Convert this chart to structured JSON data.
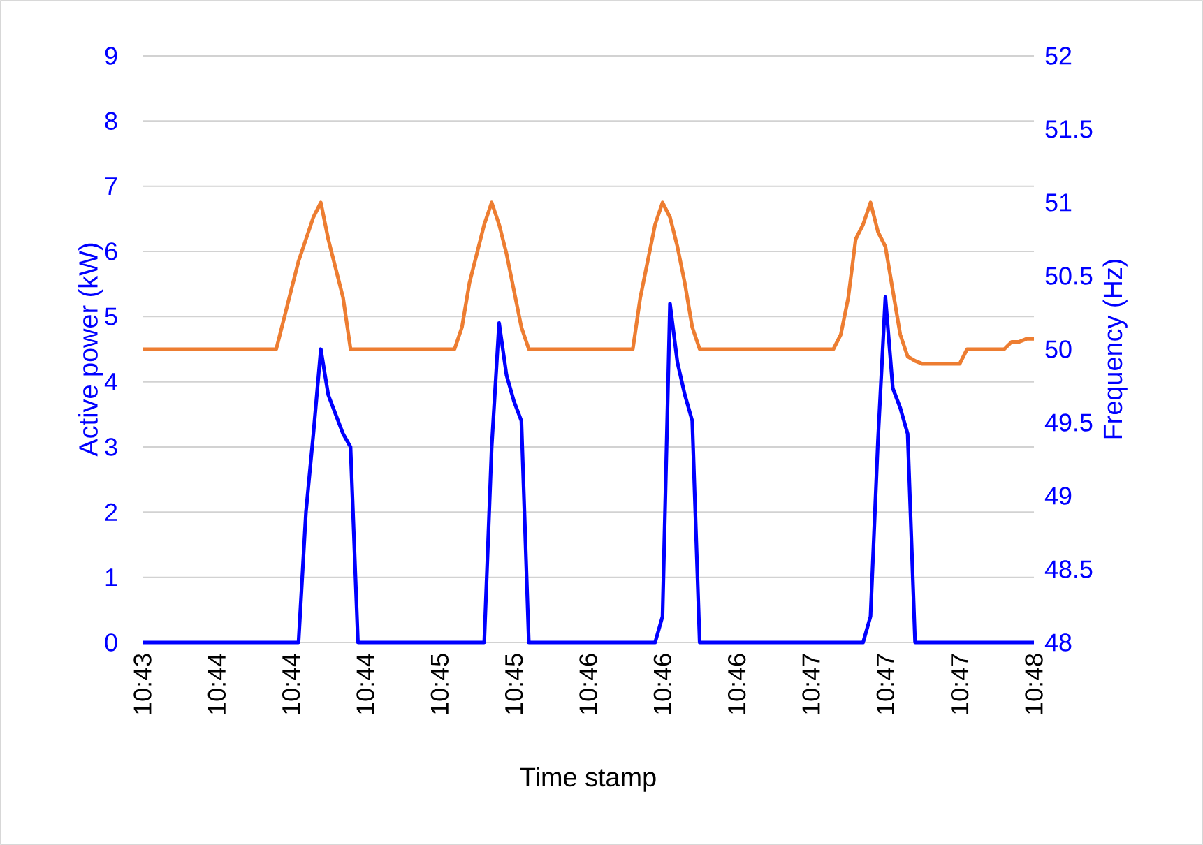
{
  "chart_data": {
    "type": "line",
    "xlabel": "Time stamp",
    "ylabel": "Active power (kW)",
    "y2label": "Frequency (Hz)",
    "categories": [
      "10:43",
      null,
      null,
      null,
      null,
      null,
      null,
      null,
      null,
      null,
      "10:44",
      null,
      null,
      null,
      null,
      null,
      null,
      null,
      null,
      null,
      "10:44",
      null,
      null,
      null,
      null,
      null,
      null,
      null,
      null,
      null,
      "10:44",
      null,
      null,
      null,
      null,
      null,
      null,
      null,
      null,
      null,
      "10:45",
      null,
      null,
      null,
      null,
      null,
      null,
      null,
      null,
      null,
      "10:45",
      null,
      null,
      null,
      null,
      null,
      null,
      null,
      null,
      null,
      "10:46",
      null,
      null,
      null,
      null,
      null,
      null,
      null,
      null,
      null,
      "10:46",
      null,
      null,
      null,
      null,
      null,
      null,
      null,
      null,
      null,
      "10:46",
      null,
      null,
      null,
      null,
      null,
      null,
      null,
      null,
      null,
      "10:47",
      null,
      null,
      null,
      null,
      null,
      null,
      null,
      null,
      null,
      "10:47",
      null,
      null,
      null,
      null,
      null,
      null,
      null,
      null,
      null,
      "10:47",
      null,
      null,
      null,
      null,
      null,
      null,
      null,
      null,
      null,
      "10:48"
    ],
    "ylim": [
      0,
      9
    ],
    "yticks": [
      0,
      1,
      2,
      3,
      4,
      5,
      6,
      7,
      8,
      9
    ],
    "y2lim": [
      48,
      52
    ],
    "y2ticks": [
      48,
      48.5,
      49,
      49.5,
      50,
      50.5,
      51,
      51.5,
      52
    ],
    "grid": "y",
    "series": [
      {
        "color": "#0000ff",
        "values": [
          0,
          0,
          0,
          0,
          0,
          0,
          0,
          0,
          0,
          0,
          0,
          0,
          0,
          0,
          0,
          0,
          0,
          0,
          0,
          0,
          0,
          0,
          2.0,
          3.2,
          4.5,
          3.8,
          3.5,
          3.2,
          3.0,
          0,
          0,
          0,
          0,
          0,
          0,
          0,
          0,
          0,
          0,
          0,
          0,
          0,
          0,
          0,
          0,
          0,
          0,
          3.0,
          4.9,
          4.1,
          3.7,
          3.4,
          0,
          0,
          0,
          0,
          0,
          0,
          0,
          0,
          0,
          0,
          0,
          0,
          0,
          0,
          0,
          0,
          0,
          0,
          0.4,
          5.2,
          4.3,
          3.8,
          3.4,
          0,
          0,
          0,
          0,
          0,
          0,
          0,
          0,
          0,
          0,
          0,
          0,
          0,
          0,
          0,
          0,
          0,
          0,
          0,
          0,
          0,
          0,
          0,
          0.4,
          3.1,
          5.3,
          3.9,
          3.6,
          3.2,
          0,
          0,
          0,
          0,
          0,
          0,
          0,
          0,
          0,
          0,
          0,
          0,
          0,
          0,
          0,
          0,
          0
        ]
      },
      {
        "color": "#ed7d31",
        "axis": "y2",
        "values": [
          50.0,
          50.0,
          50.0,
          50.0,
          50.0,
          50.0,
          50.0,
          50.0,
          50.0,
          50.0,
          50.0,
          50.0,
          50.0,
          50.0,
          50.0,
          50.0,
          50.0,
          50.0,
          50.0,
          50.2,
          50.4,
          50.6,
          50.75,
          50.9,
          51.0,
          50.75,
          50.55,
          50.35,
          50.0,
          50.0,
          50.0,
          50.0,
          50.0,
          50.0,
          50.0,
          50.0,
          50.0,
          50.0,
          50.0,
          50.0,
          50.0,
          50.0,
          50.0,
          50.15,
          50.45,
          50.65,
          50.85,
          51.0,
          50.85,
          50.65,
          50.4,
          50.15,
          50.0,
          50.0,
          50.0,
          50.0,
          50.0,
          50.0,
          50.0,
          50.0,
          50.0,
          50.0,
          50.0,
          50.0,
          50.0,
          50.0,
          50.0,
          50.35,
          50.6,
          50.85,
          51.0,
          50.9,
          50.7,
          50.45,
          50.15,
          50.0,
          50.0,
          50.0,
          50.0,
          50.0,
          50.0,
          50.0,
          50.0,
          50.0,
          50.0,
          50.0,
          50.0,
          50.0,
          50.0,
          50.0,
          50.0,
          50.0,
          50.0,
          50.0,
          50.1,
          50.35,
          50.75,
          50.85,
          51.0,
          50.8,
          50.7,
          50.4,
          50.1,
          49.95,
          49.92,
          49.9,
          49.9,
          49.9,
          49.9,
          49.9,
          49.9,
          50.0,
          50.0,
          50.0,
          50.0,
          50.0,
          50.0,
          50.05,
          50.05,
          50.07,
          50.07
        ]
      }
    ]
  }
}
